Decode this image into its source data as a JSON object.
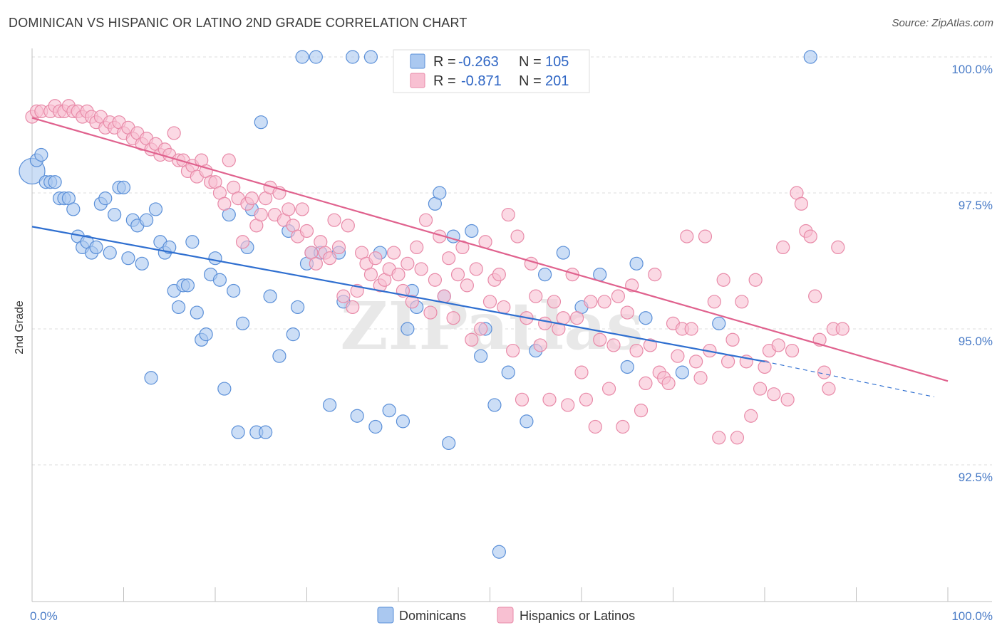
{
  "title": "DOMINICAN VS HISPANIC OR LATINO 2ND GRADE CORRELATION CHART",
  "source": "Source: ZipAtlas.com",
  "watermark": "ZIPatlas",
  "colors": {
    "dominican_fill": "#aac8f0",
    "dominican_stroke": "#5a8fd8",
    "dominican_line": "#2f6fd0",
    "hispanic_fill": "#f8c0d2",
    "hispanic_stroke": "#e88aa8",
    "hispanic_line": "#e0628e",
    "tick_label": "#4a7cc7",
    "grid": "#dcdcdc"
  },
  "legend": {
    "r_label": "R =",
    "n_label": "N =",
    "entries": [
      {
        "r": "-0.263",
        "n": "105"
      },
      {
        "r": "-0.871",
        "n": "201"
      }
    ]
  },
  "bottom_legend": [
    "Dominicans",
    "Hispanics or Latinos"
  ],
  "chart_data": {
    "type": "scatter",
    "ylabel": "2nd Grade",
    "xlim": [
      0,
      100
    ],
    "ylim": [
      90.2,
      100.5
    ],
    "y_ticks": [
      {
        "value": 100.0,
        "label": "100.0%"
      },
      {
        "value": 97.5,
        "label": "97.5%"
      },
      {
        "value": 95.0,
        "label": "95.0%"
      },
      {
        "value": 92.5,
        "label": "92.5%"
      }
    ],
    "x_tick_labels": [
      {
        "value": 0,
        "label": "0.0%"
      },
      {
        "value": 100,
        "label": "100.0%"
      }
    ],
    "grid": "horizontal dashed",
    "series": [
      {
        "name": "Dominicans",
        "trend": {
          "x0": 0,
          "y0": 96.88,
          "x1": 80,
          "y1": 94.4,
          "dash_to": 98.5,
          "dash_y": 93.75
        },
        "points": [
          [
            0,
            97.9
          ],
          [
            0.5,
            98.1
          ],
          [
            1,
            98.2
          ],
          [
            1.5,
            97.7
          ],
          [
            2,
            97.7
          ],
          [
            2.5,
            97.7
          ],
          [
            3,
            97.4
          ],
          [
            3.5,
            97.4
          ],
          [
            4,
            97.4
          ],
          [
            4.5,
            97.2
          ],
          [
            5,
            96.7
          ],
          [
            5.5,
            96.5
          ],
          [
            6,
            96.6
          ],
          [
            6.5,
            96.4
          ],
          [
            7,
            96.5
          ],
          [
            7.5,
            97.3
          ],
          [
            8,
            97.4
          ],
          [
            8.5,
            96.4
          ],
          [
            9,
            97.1
          ],
          [
            9.5,
            97.6
          ],
          [
            10,
            97.6
          ],
          [
            10.5,
            96.3
          ],
          [
            11,
            97.0
          ],
          [
            11.5,
            96.9
          ],
          [
            12,
            96.2
          ],
          [
            12.5,
            97.0
          ],
          [
            13,
            94.1
          ],
          [
            13.5,
            97.2
          ],
          [
            14,
            96.6
          ],
          [
            14.5,
            96.4
          ],
          [
            15,
            96.5
          ],
          [
            15.5,
            95.7
          ],
          [
            16,
            95.4
          ],
          [
            16.5,
            95.8
          ],
          [
            17,
            95.8
          ],
          [
            17.5,
            96.6
          ],
          [
            18,
            95.3
          ],
          [
            18.5,
            94.8
          ],
          [
            19,
            94.9
          ],
          [
            19.5,
            96.0
          ],
          [
            20,
            96.3
          ],
          [
            20.5,
            95.9
          ],
          [
            21,
            93.9
          ],
          [
            21.5,
            97.1
          ],
          [
            22,
            95.7
          ],
          [
            22.5,
            93.1
          ],
          [
            23,
            95.1
          ],
          [
            23.5,
            96.5
          ],
          [
            24,
            97.2
          ],
          [
            24.5,
            93.1
          ],
          [
            25,
            98.8
          ],
          [
            25.5,
            93.1
          ],
          [
            26,
            95.6
          ],
          [
            27,
            94.5
          ],
          [
            28,
            96.8
          ],
          [
            28.5,
            94.9
          ],
          [
            29,
            95.4
          ],
          [
            29.5,
            100
          ],
          [
            30,
            96.2
          ],
          [
            30.5,
            96.4
          ],
          [
            31,
            100
          ],
          [
            31.5,
            96.4
          ],
          [
            32.5,
            93.6
          ],
          [
            33.5,
            96.4
          ],
          [
            34,
            95.5
          ],
          [
            35,
            100
          ],
          [
            35.5,
            93.4
          ],
          [
            37,
            100
          ],
          [
            37.5,
            93.2
          ],
          [
            38,
            96.4
          ],
          [
            39,
            93.5
          ],
          [
            40.5,
            93.3
          ],
          [
            41,
            95.0
          ],
          [
            41.5,
            95.7
          ],
          [
            42,
            95.4
          ],
          [
            42.5,
            100
          ],
          [
            44,
            97.3
          ],
          [
            44.5,
            97.5
          ],
          [
            45,
            95.6
          ],
          [
            45.5,
            92.9
          ],
          [
            46,
            96.7
          ],
          [
            48,
            96.8
          ],
          [
            49,
            94.5
          ],
          [
            49.5,
            95.0
          ],
          [
            50.5,
            93.6
          ],
          [
            51,
            90.9
          ],
          [
            52,
            94.2
          ],
          [
            54,
            93.3
          ],
          [
            55,
            94.6
          ],
          [
            56,
            96.0
          ],
          [
            58,
            96.4
          ],
          [
            60,
            95.4
          ],
          [
            62,
            96.0
          ],
          [
            65,
            94.3
          ],
          [
            66,
            96.2
          ],
          [
            67,
            95.2
          ],
          [
            71,
            94.2
          ],
          [
            75,
            95.1
          ],
          [
            85,
            100
          ]
        ]
      },
      {
        "name": "Hispanics or Latinos",
        "trend": {
          "x0": 0,
          "y0": 98.88,
          "x1": 100,
          "y1": 94.04
        },
        "points": [
          [
            0,
            98.9
          ],
          [
            0.5,
            99.0
          ],
          [
            1,
            99.0
          ],
          [
            2,
            99.0
          ],
          [
            2.5,
            99.1
          ],
          [
            3,
            99.0
          ],
          [
            3.5,
            99.0
          ],
          [
            4,
            99.1
          ],
          [
            4.5,
            99.0
          ],
          [
            5,
            99.0
          ],
          [
            5.5,
            98.9
          ],
          [
            6,
            99.0
          ],
          [
            6.5,
            98.9
          ],
          [
            7,
            98.8
          ],
          [
            7.5,
            98.9
          ],
          [
            8,
            98.7
          ],
          [
            8.5,
            98.8
          ],
          [
            9,
            98.7
          ],
          [
            9.5,
            98.8
          ],
          [
            10,
            98.6
          ],
          [
            10.5,
            98.7
          ],
          [
            11,
            98.5
          ],
          [
            11.5,
            98.6
          ],
          [
            12,
            98.4
          ],
          [
            12.5,
            98.5
          ],
          [
            13,
            98.3
          ],
          [
            13.5,
            98.4
          ],
          [
            14,
            98.2
          ],
          [
            14.5,
            98.3
          ],
          [
            15,
            98.2
          ],
          [
            15.5,
            98.6
          ],
          [
            16,
            98.1
          ],
          [
            16.5,
            98.1
          ],
          [
            17,
            97.9
          ],
          [
            17.5,
            98.0
          ],
          [
            18,
            97.8
          ],
          [
            18.5,
            98.1
          ],
          [
            19,
            97.9
          ],
          [
            19.5,
            97.7
          ],
          [
            20,
            97.7
          ],
          [
            20.5,
            97.5
          ],
          [
            21,
            97.3
          ],
          [
            21.5,
            98.1
          ],
          [
            22,
            97.6
          ],
          [
            22.5,
            97.4
          ],
          [
            23,
            96.6
          ],
          [
            23.5,
            97.3
          ],
          [
            24,
            97.4
          ],
          [
            24.5,
            96.9
          ],
          [
            25,
            97.1
          ],
          [
            25.5,
            97.4
          ],
          [
            26,
            97.6
          ],
          [
            26.5,
            97.1
          ],
          [
            27,
            97.5
          ],
          [
            27.5,
            97.0
          ],
          [
            28,
            97.2
          ],
          [
            28.5,
            96.9
          ],
          [
            29,
            96.7
          ],
          [
            29.5,
            97.2
          ],
          [
            30,
            96.8
          ],
          [
            30.5,
            96.4
          ],
          [
            31,
            96.2
          ],
          [
            31.5,
            96.6
          ],
          [
            32,
            96.4
          ],
          [
            32.5,
            96.3
          ],
          [
            33,
            97.0
          ],
          [
            33.5,
            96.5
          ],
          [
            34,
            95.6
          ],
          [
            34.5,
            96.9
          ],
          [
            35,
            95.4
          ],
          [
            35.5,
            95.7
          ],
          [
            36,
            96.4
          ],
          [
            36.5,
            96.2
          ],
          [
            37,
            96.0
          ],
          [
            37.5,
            96.3
          ],
          [
            38,
            95.8
          ],
          [
            38.5,
            95.9
          ],
          [
            39,
            96.1
          ],
          [
            39.5,
            96.4
          ],
          [
            40,
            96.0
          ],
          [
            40.5,
            95.7
          ],
          [
            41,
            96.2
          ],
          [
            41.5,
            95.5
          ],
          [
            42,
            96.5
          ],
          [
            42.5,
            96.1
          ],
          [
            43,
            97.0
          ],
          [
            43.5,
            95.3
          ],
          [
            44,
            95.9
          ],
          [
            44.5,
            96.7
          ],
          [
            45,
            95.6
          ],
          [
            45.5,
            96.3
          ],
          [
            46,
            95.2
          ],
          [
            46.5,
            96.0
          ],
          [
            47,
            96.5
          ],
          [
            47.5,
            95.8
          ],
          [
            48,
            94.8
          ],
          [
            48.5,
            96.1
          ],
          [
            49,
            95.0
          ],
          [
            49.5,
            96.6
          ],
          [
            50,
            95.5
          ],
          [
            50.5,
            95.9
          ],
          [
            51,
            96.0
          ],
          [
            51.5,
            95.4
          ],
          [
            52,
            97.1
          ],
          [
            52.5,
            94.6
          ],
          [
            53,
            96.7
          ],
          [
            53.5,
            93.7
          ],
          [
            54,
            95.2
          ],
          [
            54.5,
            96.2
          ],
          [
            55,
            95.6
          ],
          [
            55.5,
            94.7
          ],
          [
            56,
            95.1
          ],
          [
            56.5,
            93.7
          ],
          [
            57,
            95.5
          ],
          [
            57.5,
            95.0
          ],
          [
            58,
            95.2
          ],
          [
            58.5,
            93.6
          ],
          [
            59,
            96.0
          ],
          [
            59.5,
            95.2
          ],
          [
            60,
            94.2
          ],
          [
            60.5,
            93.7
          ],
          [
            61,
            95.5
          ],
          [
            61.5,
            93.2
          ],
          [
            62,
            94.8
          ],
          [
            62.5,
            95.5
          ],
          [
            63,
            93.9
          ],
          [
            63.5,
            94.7
          ],
          [
            64,
            95.6
          ],
          [
            64.5,
            93.2
          ],
          [
            65,
            95.3
          ],
          [
            65.5,
            95.8
          ],
          [
            66,
            94.6
          ],
          [
            66.5,
            93.5
          ],
          [
            67,
            94.0
          ],
          [
            67.5,
            94.7
          ],
          [
            68,
            96.0
          ],
          [
            68.5,
            94.2
          ],
          [
            69,
            94.1
          ],
          [
            69.5,
            94.0
          ],
          [
            70,
            95.1
          ],
          [
            70.5,
            94.5
          ],
          [
            71,
            95.0
          ],
          [
            71.5,
            96.7
          ],
          [
            72,
            95.0
          ],
          [
            72.5,
            94.4
          ],
          [
            73,
            94.1
          ],
          [
            73.5,
            96.7
          ],
          [
            74,
            94.6
          ],
          [
            74.5,
            95.5
          ],
          [
            75,
            93.0
          ],
          [
            75.5,
            95.9
          ],
          [
            76,
            94.4
          ],
          [
            76.5,
            94.8
          ],
          [
            77,
            93.0
          ],
          [
            77.5,
            95.5
          ],
          [
            78,
            94.4
          ],
          [
            78.5,
            93.4
          ],
          [
            79,
            95.9
          ],
          [
            79.5,
            93.9
          ],
          [
            80,
            94.3
          ],
          [
            80.5,
            94.6
          ],
          [
            81,
            93.8
          ],
          [
            81.5,
            94.7
          ],
          [
            82,
            96.5
          ],
          [
            82.5,
            93.7
          ],
          [
            83,
            94.6
          ],
          [
            83.5,
            97.5
          ],
          [
            84,
            97.3
          ],
          [
            84.5,
            96.8
          ],
          [
            85,
            96.7
          ],
          [
            85.5,
            95.6
          ],
          [
            86,
            94.8
          ],
          [
            86.5,
            94.2
          ],
          [
            87,
            93.9
          ],
          [
            87.5,
            95.0
          ],
          [
            88,
            96.5
          ],
          [
            88.5,
            95.0
          ]
        ]
      }
    ]
  }
}
